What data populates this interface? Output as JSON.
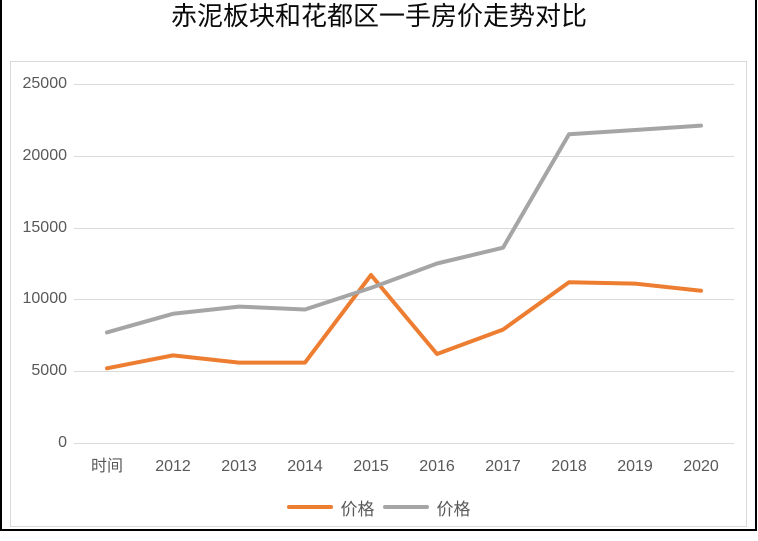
{
  "chart_data": {
    "type": "line",
    "title": "赤泥板块和花都区一手房价走势对比",
    "categories": [
      "时间",
      "2012",
      "2013",
      "2014",
      "2015",
      "2016",
      "2017",
      "2018",
      "2019",
      "2020"
    ],
    "series": [
      {
        "name": "价格",
        "color": "#ED7D31",
        "values": [
          5200,
          6100,
          5600,
          5600,
          11700,
          6200,
          7900,
          11200,
          11100,
          10600
        ]
      },
      {
        "name": "价格",
        "color": "#A5A5A5",
        "values": [
          7700,
          9000,
          9500,
          9300,
          10800,
          12500,
          13600,
          21500,
          21800,
          22100
        ]
      }
    ],
    "ylim": [
      0,
      25000
    ],
    "ytick_interval": 5000,
    "yticks": [
      "0",
      "5000",
      "10000",
      "15000",
      "20000",
      "25000"
    ],
    "xlabel": "",
    "ylabel": "",
    "grid": "horizontal",
    "legend_position": "bottom"
  },
  "colors": {
    "gridline": "#D9D9D9",
    "axis_text": "#595959",
    "frame": "#000000",
    "chart_border": "#D9D9D9",
    "background": "#FFFFFF"
  }
}
